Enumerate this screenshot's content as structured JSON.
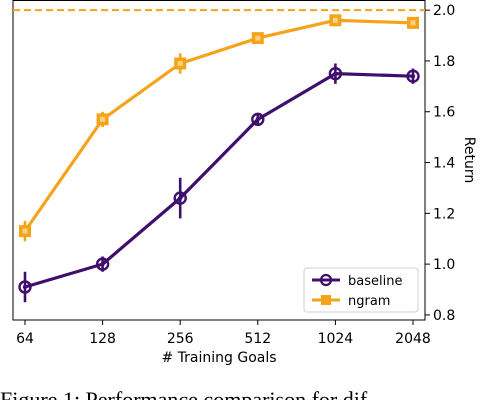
{
  "chart_data": {
    "type": "line",
    "xlabel": "# Training Goals",
    "ylabel": "Return",
    "x_scale": "log2",
    "categories": [
      "64",
      "128",
      "256",
      "512",
      "1024",
      "2048"
    ],
    "x": [
      64,
      128,
      256,
      512,
      1024,
      2048
    ],
    "ylim": [
      0.78,
      2.04
    ],
    "yticks": [
      "0.8",
      "1.0",
      "1.2",
      "1.4",
      "1.6",
      "1.8",
      "2.0"
    ],
    "y_axis_side": "right",
    "grid": false,
    "legend_position": "bottom-right",
    "reference_line": {
      "y": 2.0,
      "style": "dashed",
      "color": "#f5a31a"
    },
    "series": [
      {
        "name": "baseline",
        "color": "#3f0f6e",
        "marker": "circle",
        "values": [
          0.91,
          1.0,
          1.26,
          1.57,
          1.75,
          1.74
        ],
        "error": [
          0.06,
          0.03,
          0.08,
          0.02,
          0.04,
          0.03
        ]
      },
      {
        "name": "ngram",
        "color": "#f5a31a",
        "marker": "square",
        "values": [
          1.13,
          1.57,
          1.79,
          1.89,
          1.96,
          1.95
        ],
        "error": [
          0.04,
          0.03,
          0.04,
          0.015,
          0.015,
          0.015
        ]
      }
    ]
  },
  "caption": "Figure 1: Performance comparison for dif"
}
